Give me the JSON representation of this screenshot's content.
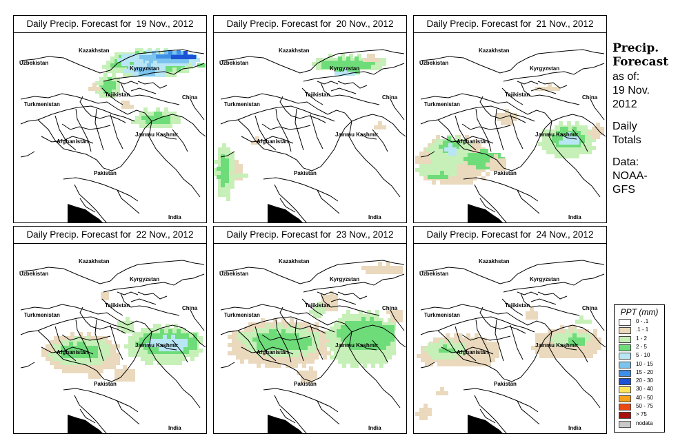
{
  "panels": [
    {
      "title": "Daily Precip. Forecast for  19 Nov., 2012"
    },
    {
      "title": "Daily Precip. Forecast for  20 Nov., 2012"
    },
    {
      "title": "Daily Precip. Forecast for  21 Nov., 2012"
    },
    {
      "title": "Daily Precip. Forecast for  22 Nov., 2012"
    },
    {
      "title": "Daily Precip. Forecast for  23 Nov., 2012"
    },
    {
      "title": "Daily Precip. Forecast for  24 Nov., 2012"
    }
  ],
  "map_labels": {
    "kazakhstan": "Kazakhstan",
    "uzbekistan": "Uzbekistan",
    "kyrgyzstan": "Kyrgyzstan",
    "tajikistan": "Tajikistan",
    "turkmenistan": "Turkmenistan",
    "china": "China",
    "afghanistan": "Afghanistan",
    "jammu_kashmir": "Jammu Kashmir",
    "pakistan": "Pakistan",
    "india": "India"
  },
  "sidebar": {
    "heading_line1": "Precip.",
    "heading_line2": "Forecast",
    "asof_line1": "as of:",
    "asof_line2": "19 Nov.",
    "asof_line3": "2012",
    "daily_line1": "Daily",
    "daily_line2": "Totals",
    "data_line1": "Data:",
    "data_line2": "NOAA-",
    "data_line3": "GFS"
  },
  "legend": {
    "title": "PPT (mm)",
    "items": [
      {
        "label": "0 - .1",
        "color": "#ffffff"
      },
      {
        "label": ".1 - 1",
        "color": "#ead9bd"
      },
      {
        "label": "1 - 2",
        "color": "#c6f0b8"
      },
      {
        "label": "2 - 5",
        "color": "#6fdc7a"
      },
      {
        "label": "5 - 10",
        "color": "#b8e6f5"
      },
      {
        "label": "10 - 15",
        "color": "#7cc4ee"
      },
      {
        "label": "15 - 20",
        "color": "#3f8fe6"
      },
      {
        "label": "20 - 30",
        "color": "#1c52d6"
      },
      {
        "label": "30 - 40",
        "color": "#ffe45c"
      },
      {
        "label": "40 - 50",
        "color": "#f7a21a"
      },
      {
        "label": "50 - 75",
        "color": "#ea4a12"
      },
      {
        "label": "> 75",
        "color": "#a8120c"
      },
      {
        "label": "nodata",
        "color": "#c9c9c9"
      }
    ]
  }
}
